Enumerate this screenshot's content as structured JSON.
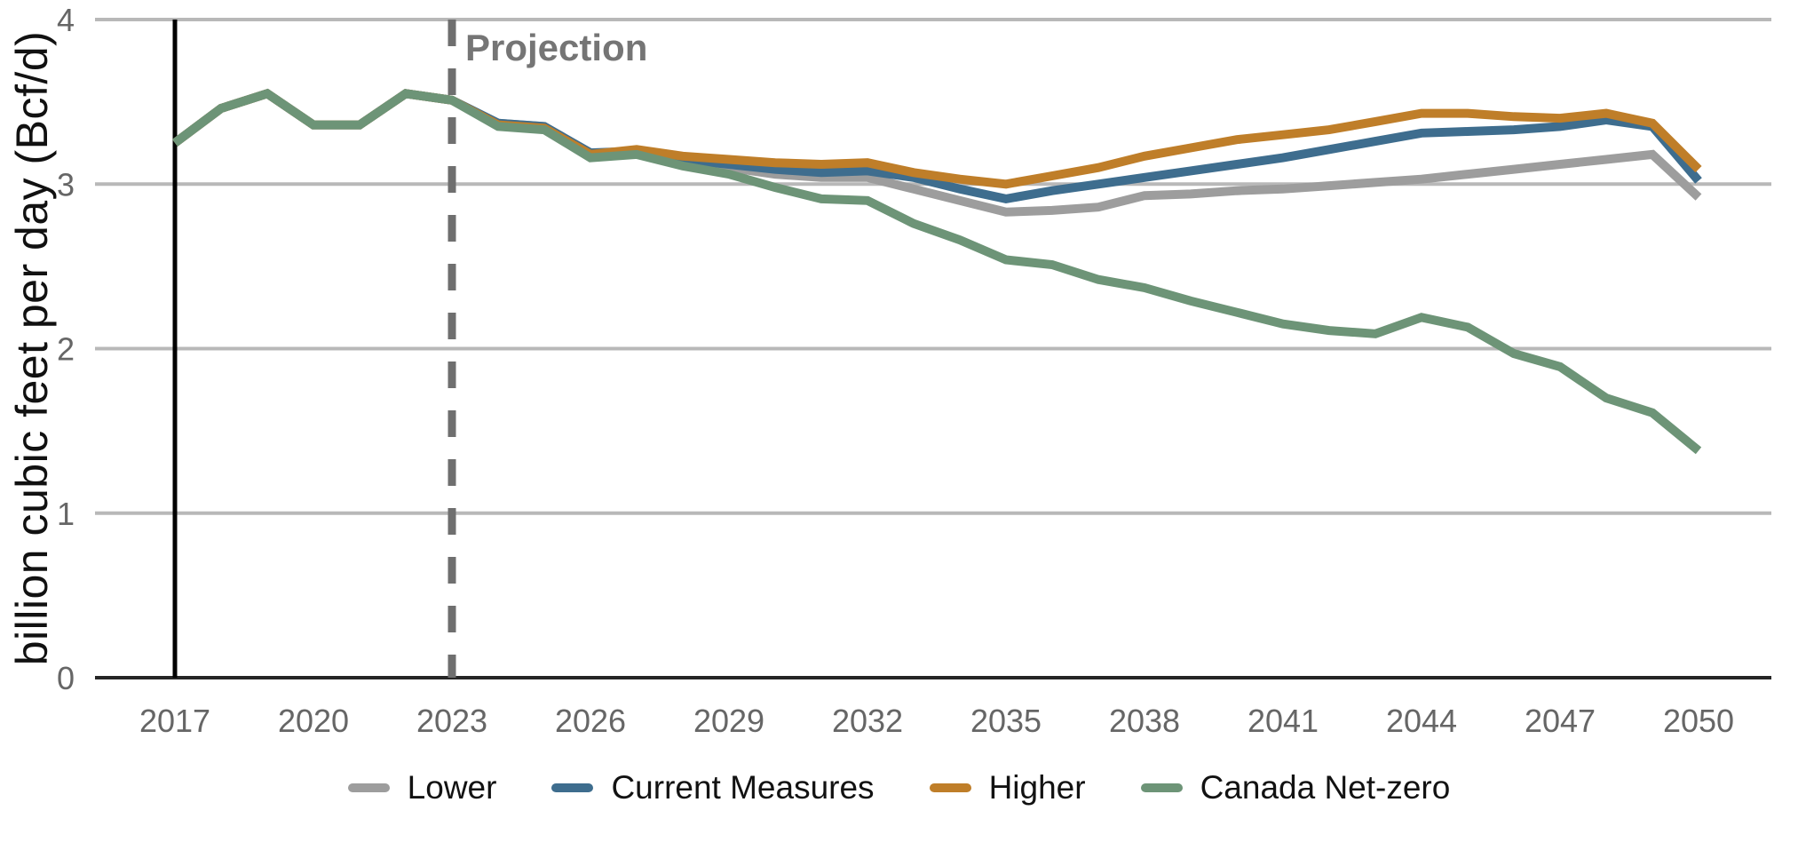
{
  "chart_data": {
    "type": "line",
    "title": "",
    "xlabel": "",
    "ylabel": "billion cubic feet per day (Bcf/d)",
    "unit": "Bcf/d",
    "x": [
      2017,
      2018,
      2019,
      2020,
      2021,
      2022,
      2023,
      2024,
      2025,
      2026,
      2027,
      2028,
      2029,
      2030,
      2031,
      2032,
      2033,
      2034,
      2035,
      2036,
      2037,
      2038,
      2039,
      2040,
      2041,
      2042,
      2043,
      2044,
      2045,
      2046,
      2047,
      2048,
      2049,
      2050
    ],
    "x_ticks": [
      2017,
      2020,
      2023,
      2026,
      2029,
      2032,
      2035,
      2038,
      2041,
      2044,
      2047,
      2050
    ],
    "y_ticks": [
      0,
      1,
      2,
      3,
      4
    ],
    "ylim": [
      0,
      4
    ],
    "grid": true,
    "legend_position": "bottom",
    "annotations": {
      "projection_label": "Projection",
      "solid_vline_year": 2017,
      "dashed_vline_year": 2023
    },
    "colors": {
      "grid": "#b8b8b8",
      "axis": "#262626",
      "tick_label": "#666666",
      "annotation": "#757575",
      "solid_vline": "#000000",
      "dashed_vline": "#6f6f6f"
    },
    "series": [
      {
        "name": "Lower",
        "color": "#9d9d9d",
        "values": [
          3.25,
          3.46,
          3.55,
          3.36,
          3.36,
          3.55,
          3.51,
          3.37,
          3.35,
          3.19,
          3.19,
          3.13,
          3.1,
          3.06,
          3.04,
          3.04,
          2.97,
          2.9,
          2.83,
          2.84,
          2.86,
          2.93,
          2.94,
          2.96,
          2.97,
          2.99,
          3.01,
          3.03,
          3.06,
          3.09,
          3.12,
          3.15,
          3.18,
          2.92
        ]
      },
      {
        "name": "Current Measures",
        "color": "#3e6d8e",
        "values": [
          3.25,
          3.46,
          3.55,
          3.36,
          3.36,
          3.55,
          3.51,
          3.37,
          3.35,
          3.19,
          3.2,
          3.15,
          3.12,
          3.09,
          3.07,
          3.08,
          3.04,
          2.97,
          2.91,
          2.96,
          3.0,
          3.04,
          3.08,
          3.12,
          3.16,
          3.21,
          3.26,
          3.31,
          3.32,
          3.33,
          3.35,
          3.39,
          3.35,
          3.02
        ]
      },
      {
        "name": "Higher",
        "color": "#bf7e29",
        "values": [
          3.25,
          3.46,
          3.55,
          3.36,
          3.36,
          3.55,
          3.51,
          3.36,
          3.34,
          3.18,
          3.21,
          3.17,
          3.15,
          3.13,
          3.12,
          3.13,
          3.07,
          3.03,
          3.0,
          3.05,
          3.1,
          3.17,
          3.22,
          3.27,
          3.3,
          3.33,
          3.38,
          3.43,
          3.43,
          3.41,
          3.4,
          3.43,
          3.37,
          3.09
        ]
      },
      {
        "name": "Canada Net-zero",
        "color": "#6d9477",
        "values": [
          3.25,
          3.46,
          3.55,
          3.36,
          3.36,
          3.55,
          3.51,
          3.35,
          3.33,
          3.16,
          3.18,
          3.11,
          3.06,
          2.98,
          2.91,
          2.9,
          2.76,
          2.66,
          2.54,
          2.51,
          2.42,
          2.37,
          2.29,
          2.22,
          2.15,
          2.11,
          2.09,
          2.19,
          2.13,
          1.97,
          1.89,
          1.7,
          1.61,
          1.38
        ]
      }
    ]
  }
}
